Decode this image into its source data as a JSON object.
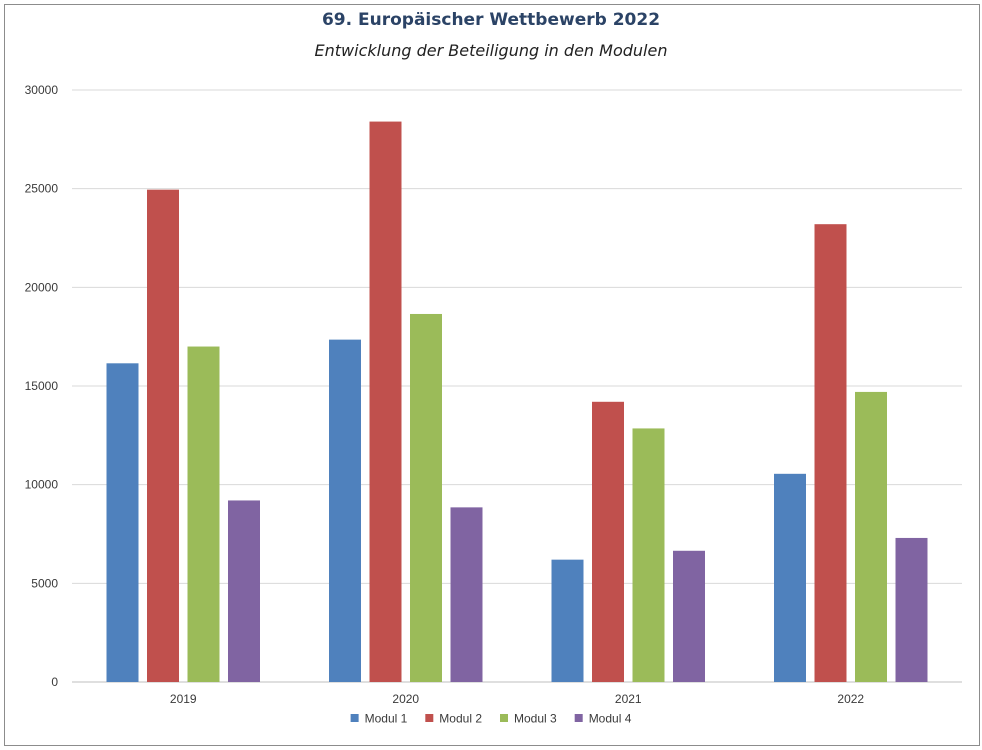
{
  "chart_data": {
    "type": "bar",
    "title": "69. Europäischer Wettbewerb 2022",
    "subtitle": "Entwicklung der Beteiligung in den Modulen",
    "categories": [
      "2019",
      "2020",
      "2021",
      "2022"
    ],
    "series": [
      {
        "name": "Modul 1",
        "color": "#4f81bd",
        "values": [
          16150,
          17350,
          6200,
          10550
        ]
      },
      {
        "name": "Modul 2",
        "color": "#c0504d",
        "values": [
          24950,
          28400,
          14200,
          23200
        ]
      },
      {
        "name": "Modul 3",
        "color": "#9bbb59",
        "values": [
          17000,
          18650,
          12850,
          14700
        ]
      },
      {
        "name": "Modul 4",
        "color": "#8064a2",
        "values": [
          9200,
          8850,
          6650,
          7300
        ]
      }
    ],
    "ylim": [
      0,
      30000
    ],
    "yticks": [
      "0",
      "5000",
      "10000",
      "15000",
      "20000",
      "25000",
      "30000"
    ],
    "grid": true,
    "legend_position": "bottom"
  }
}
